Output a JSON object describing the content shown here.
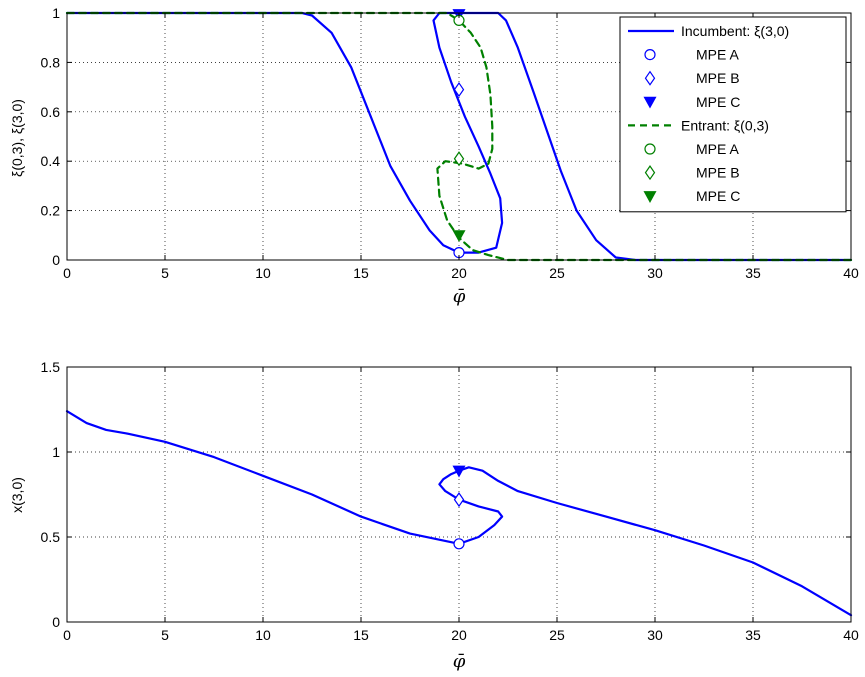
{
  "chart_data": [
    {
      "type": "line",
      "xlabel": "φ̄",
      "ylabel": "ξ(0,3), ξ(3,0)",
      "xlim": [
        0,
        40
      ],
      "ylim": [
        0,
        1
      ],
      "xticks": [
        "0",
        "5",
        "10",
        "15",
        "20",
        "25",
        "30",
        "35",
        "40"
      ],
      "yticks": [
        "0",
        "0.2",
        "0.4",
        "0.6",
        "0.8",
        "1"
      ],
      "grid": true,
      "legend_position": "top-right",
      "series": [
        {
          "name": "Incumbent: ξ(3,0)",
          "color": "#0000ff",
          "style": "solid",
          "x": [
            0,
            12.0,
            12.5,
            13.5,
            14.5,
            15.5,
            16.5,
            17.5,
            18.5,
            19.2,
            20.0,
            21.0,
            21.9,
            22.2,
            22.1,
            21.6,
            21.0,
            20.3,
            19.6,
            19.0,
            18.7,
            19.0,
            19.6,
            20.4,
            21.2,
            22.0,
            22.4,
            23.0,
            23.8,
            24.5,
            25.2,
            26.0,
            27.0,
            28.0,
            29.0,
            40.0
          ],
          "y": [
            1,
            1,
            0.99,
            0.92,
            0.78,
            0.58,
            0.38,
            0.24,
            0.12,
            0.06,
            0.03,
            0.03,
            0.05,
            0.15,
            0.25,
            0.35,
            0.46,
            0.58,
            0.72,
            0.86,
            0.97,
            1.0,
            1.0,
            1.0,
            1.0,
            1.0,
            0.97,
            0.86,
            0.68,
            0.52,
            0.36,
            0.2,
            0.08,
            0.01,
            0.0,
            0.0
          ]
        },
        {
          "name": "Entrant: ξ(0,3)",
          "color": "#008000",
          "style": "dashed",
          "x": [
            0,
            18.8,
            19.4,
            20.0,
            20.6,
            21.1,
            21.4,
            21.6,
            21.7,
            21.7,
            21.5,
            21.0,
            20.2,
            19.3,
            18.9,
            19.0,
            19.4,
            20.0,
            20.7,
            21.5,
            22.5,
            24.0,
            26.0,
            40.0
          ],
          "y": [
            1,
            1.0,
            1.0,
            0.97,
            0.92,
            0.86,
            0.78,
            0.67,
            0.54,
            0.45,
            0.39,
            0.37,
            0.39,
            0.4,
            0.37,
            0.26,
            0.16,
            0.09,
            0.04,
            0.02,
            0.0,
            0.0,
            0.0,
            0.0
          ]
        }
      ],
      "markers": [
        {
          "group": "Incumbent",
          "name": "MPE A",
          "shape": "circle",
          "filled": false,
          "x": 20,
          "y": 0.03
        },
        {
          "group": "Incumbent",
          "name": "MPE B",
          "shape": "diamond",
          "filled": false,
          "x": 20,
          "y": 0.69
        },
        {
          "group": "Incumbent",
          "name": "MPE C",
          "shape": "triangle-down",
          "filled": true,
          "x": 20,
          "y": 0.995
        },
        {
          "group": "Entrant",
          "name": "MPE A",
          "shape": "circle",
          "filled": false,
          "x": 20,
          "y": 0.97
        },
        {
          "group": "Entrant",
          "name": "MPE B",
          "shape": "diamond",
          "filled": false,
          "x": 20,
          "y": 0.41
        },
        {
          "group": "Entrant",
          "name": "MPE C",
          "shape": "triangle-down",
          "filled": true,
          "x": 20,
          "y": 0.1
        }
      ],
      "legend": [
        {
          "label": "Incumbent: ξ(3,0)",
          "kind": "line",
          "color": "#0000ff",
          "style": "solid"
        },
        {
          "label": "MPE A",
          "kind": "marker",
          "shape": "circle",
          "filled": false,
          "color": "#0000ff"
        },
        {
          "label": "MPE B",
          "kind": "marker",
          "shape": "diamond",
          "filled": false,
          "color": "#0000ff"
        },
        {
          "label": "MPE C",
          "kind": "marker",
          "shape": "triangle-down",
          "filled": true,
          "color": "#0000ff"
        },
        {
          "label": "Entrant: ξ(0,3)",
          "kind": "line",
          "color": "#008000",
          "style": "dashed"
        },
        {
          "label": "MPE A",
          "kind": "marker",
          "shape": "circle",
          "filled": false,
          "color": "#008000"
        },
        {
          "label": "MPE B",
          "kind": "marker",
          "shape": "diamond",
          "filled": false,
          "color": "#008000"
        },
        {
          "label": "MPE C",
          "kind": "marker",
          "shape": "triangle-down",
          "filled": true,
          "color": "#008000"
        }
      ]
    },
    {
      "type": "line",
      "xlabel": "φ̄",
      "ylabel": "x(3,0)",
      "xlim": [
        0,
        40
      ],
      "ylim": [
        0,
        1.5
      ],
      "xticks": [
        "0",
        "5",
        "10",
        "15",
        "20",
        "25",
        "30",
        "35",
        "40"
      ],
      "yticks": [
        "0",
        "0.5",
        "1",
        "1.5"
      ],
      "grid": true,
      "series": [
        {
          "color": "#0000ff",
          "style": "solid",
          "x": [
            0,
            1,
            2,
            3,
            5,
            7.5,
            10,
            12.5,
            15,
            17.5,
            20,
            21.0,
            21.8,
            22.2,
            22.0,
            21.0,
            20.0,
            19.3,
            19.0,
            19.2,
            19.6,
            20.0,
            20.5,
            21.2,
            22.0,
            23.0,
            25.0,
            27.5,
            30.0,
            32.5,
            35.0,
            37.5,
            40.0
          ],
          "y": [
            1.24,
            1.17,
            1.13,
            1.11,
            1.06,
            0.97,
            0.86,
            0.75,
            0.62,
            0.52,
            0.46,
            0.5,
            0.57,
            0.62,
            0.65,
            0.68,
            0.72,
            0.77,
            0.81,
            0.84,
            0.87,
            0.89,
            0.91,
            0.89,
            0.83,
            0.77,
            0.7,
            0.62,
            0.54,
            0.45,
            0.35,
            0.21,
            0.04
          ]
        }
      ],
      "markers": [
        {
          "name": "MPE A",
          "shape": "circle",
          "filled": false,
          "x": 20,
          "y": 0.46
        },
        {
          "name": "MPE B",
          "shape": "diamond",
          "filled": false,
          "x": 20,
          "y": 0.72
        },
        {
          "name": "MPE C",
          "shape": "triangle-down",
          "filled": true,
          "x": 20,
          "y": 0.89
        }
      ]
    }
  ]
}
